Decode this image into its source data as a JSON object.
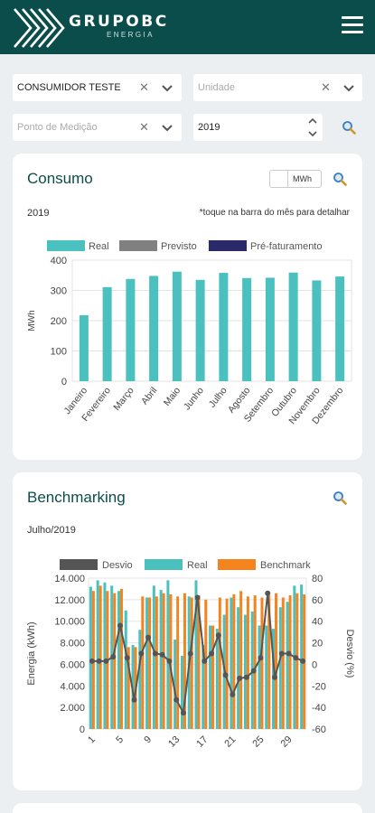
{
  "header": {
    "brand": "GRUPOBC",
    "brand_sub": "ENERGIA"
  },
  "filters": {
    "consumidor": "CONSUMIDOR TESTE",
    "unidade_placeholder": "Unidade",
    "ponto_placeholder": "Ponto de Medição",
    "ano": "2019"
  },
  "consumo": {
    "title": "Consumo",
    "unit": "MWh",
    "year": "2019",
    "hint": "*toque na barra do mês para detalhar"
  },
  "benchmarking": {
    "title": "Benchmarking",
    "period": "Julho/2019"
  },
  "colors": {
    "header": "#0b4d4a",
    "real": "#4ac0bf",
    "previsto": "#808080",
    "prefat": "#2a2a6a",
    "benchmark": "#f5841f",
    "desvio": "#555555"
  },
  "chart_data": [
    {
      "type": "bar",
      "ylabel": "MWh",
      "ylim": [
        0,
        400
      ],
      "yticks": [
        "0",
        "100",
        "200",
        "300",
        "400"
      ],
      "legend": [
        "Real",
        "Previsto",
        "Pré-faturamento"
      ],
      "categories": [
        "Janeiro",
        "Fevereiro",
        "Março",
        "Abril",
        "Maio",
        "Junho",
        "Julho",
        "Agosto",
        "Setembro",
        "Outubro",
        "Novembro",
        "Dezembro"
      ],
      "series": [
        {
          "name": "Real",
          "values": [
            218,
            311,
            338,
            348,
            362,
            335,
            358,
            341,
            342,
            359,
            333,
            346
          ]
        }
      ]
    },
    {
      "type": "bar",
      "ylabel": "Energia (kWh)",
      "y2label": "Desvio (%)",
      "ylim": [
        0,
        14000
      ],
      "y2lim": [
        -60,
        80
      ],
      "yticks": [
        "0",
        "2.000",
        "4.000",
        "6.000",
        "8.000",
        "10.000",
        "12.000",
        "14.000"
      ],
      "y2ticks": [
        "-60",
        "-40",
        "-20",
        "0",
        "20",
        "40",
        "60",
        "80"
      ],
      "xticks": [
        "1",
        "5",
        "9",
        "13",
        "17",
        "21",
        "25",
        "29"
      ],
      "legend": [
        "Desvio",
        "Real",
        "Benchmark"
      ],
      "x": [
        1,
        2,
        3,
        4,
        5,
        6,
        7,
        8,
        9,
        10,
        11,
        12,
        13,
        14,
        15,
        16,
        17,
        18,
        19,
        20,
        21,
        22,
        23,
        24,
        25,
        26,
        27,
        28,
        29,
        30,
        31
      ],
      "series": [
        {
          "name": "Real",
          "values": [
            13200,
            13800,
            13600,
            13300,
            12800,
            11000,
            7800,
            9200,
            12200,
            13300,
            12900,
            13800,
            8300,
            6800,
            12300,
            13800,
            7800,
            9600,
            9300,
            10600,
            12200,
            11300,
            10600,
            10900,
            9600,
            9600,
            9300,
            11300,
            11800,
            13300,
            13400
          ]
        },
        {
          "name": "Benchmark",
          "values": [
            12800,
            13300,
            12800,
            12600,
            13000,
            7600,
            7600,
            12300,
            12200,
            12300,
            12600,
            12500,
            12300,
            12600,
            12200,
            12400,
            12000,
            9600,
            12200,
            12100,
            12500,
            12800,
            12300,
            12400,
            12200,
            12400,
            12600,
            12200,
            12400,
            12600,
            12500
          ]
        },
        {
          "name": "Desvio",
          "values": [
            3,
            3,
            3,
            7,
            36,
            6,
            -33,
            10,
            25,
            10,
            9,
            3,
            -33,
            -45,
            10,
            62,
            3,
            10,
            27,
            -10,
            -28,
            -13,
            -12,
            -6,
            6,
            66,
            -12,
            10,
            10,
            6,
            3
          ]
        }
      ]
    }
  ]
}
